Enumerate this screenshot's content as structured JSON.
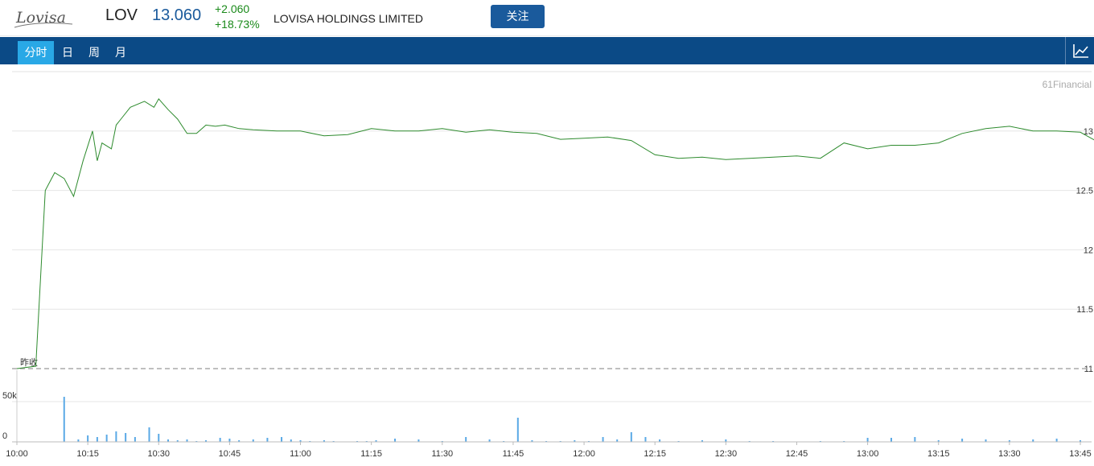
{
  "header": {
    "ticker": "LOV",
    "price": "13.060",
    "change": "+2.060",
    "change_pct": "+18.73%",
    "company": "LOVISA HOLDINGS LIMITED",
    "follow_label": "关注",
    "logo_text": "Lovisa"
  },
  "tabs": [
    {
      "label": "分时",
      "active": true
    },
    {
      "label": "日",
      "active": false
    },
    {
      "label": "周",
      "active": false
    },
    {
      "label": "月",
      "active": false
    }
  ],
  "chart_icon": "line-chart-icon",
  "colors": {
    "line": "#2e8b2e",
    "volume": "#5aa9e6",
    "tab_bar": "#0b4a86",
    "tab_active": "#29a8e6",
    "price": "#1a5a9c",
    "change": "#1a8a1a"
  },
  "chart_data": {
    "type": "line",
    "watermark": "61Financial",
    "prev_close_label": "昨收",
    "prev_close": 11,
    "ylim": [
      11,
      13.5
    ],
    "y_ticks": [
      {
        "value": 13,
        "label": "13"
      },
      {
        "value": 12.5,
        "label": "12.5"
      },
      {
        "value": 12,
        "label": "12"
      },
      {
        "value": 11.5,
        "label": "11.5"
      },
      {
        "value": 11,
        "label": "11"
      }
    ],
    "x_ticks": [
      "10:00",
      "10:15",
      "10:30",
      "10:45",
      "11:00",
      "11:15",
      "11:30",
      "11:45",
      "12:00",
      "12:15",
      "12:30",
      "12:45",
      "13:00",
      "13:15",
      "13:30",
      "13:45"
    ],
    "x_minutes": [
      0,
      4,
      6,
      8,
      10,
      12,
      14,
      16,
      17,
      18,
      20,
      21,
      22,
      24,
      27,
      29,
      30,
      32,
      34,
      36,
      38,
      40,
      42,
      44,
      45,
      47,
      50,
      55,
      60,
      65,
      70,
      75,
      80,
      85,
      90,
      95,
      100,
      105,
      110,
      115,
      120,
      125,
      130,
      135,
      140,
      145,
      150,
      155,
      160,
      165,
      170,
      175,
      180,
      185,
      190,
      195,
      200,
      205,
      210,
      215,
      220,
      225,
      230,
      235,
      240,
      245,
      250,
      255,
      260,
      265,
      270,
      275,
      280,
      285,
      290,
      295,
      300,
      305,
      310,
      315,
      320,
      325,
      330,
      335,
      340,
      345,
      350,
      355,
      360,
      365,
      370,
      375,
      380,
      385,
      390,
      395,
      400,
      405,
      410,
      415,
      420,
      425,
      430,
      435,
      440,
      445,
      450,
      455,
      460,
      465,
      470,
      475,
      480,
      485,
      490,
      495,
      500,
      505,
      510,
      515,
      520,
      525,
      528,
      530,
      533,
      535
    ],
    "prices": [
      11,
      11.02,
      12.5,
      12.65,
      12.6,
      12.45,
      12.75,
      13,
      12.75,
      12.9,
      12.85,
      13.05,
      13.1,
      13.2,
      13.25,
      13.2,
      13.27,
      13.18,
      13.1,
      12.98,
      12.98,
      13.05,
      13.04,
      13.05,
      13.04,
      13.02,
      13.01,
      13.0,
      13.0,
      12.96,
      12.97,
      13.02,
      13.0,
      13.0,
      13.02,
      12.99,
      13.01,
      12.99,
      12.98,
      12.93,
      12.94,
      12.95,
      12.92,
      12.8,
      12.77,
      12.78,
      12.76,
      12.77,
      12.78,
      12.79,
      12.77,
      12.9,
      12.85,
      12.88,
      12.88,
      12.9,
      12.98,
      13.02,
      13.04,
      13.0,
      13.0,
      12.99,
      12.88,
      12.94,
      12.96,
      13.0,
      13.0,
      13.0,
      12.98,
      13.0,
      13.13,
      13.13,
      13.12,
      13.12,
      13.08,
      13.06,
      13.07,
      13.09,
      13.1,
      13.11,
      13.1,
      13.13,
      13.15,
      13.16,
      13.17,
      13.18,
      13.19,
      13.2,
      13.2,
      13.17,
      13.16,
      13.16,
      13.16,
      13.15,
      13.12,
      13.1,
      13.1,
      13.08,
      13.06,
      13.08,
      13.02,
      13.05,
      13.06,
      13.04,
      13.02,
      13.03,
      13.0,
      13.0,
      13.02,
      13.04,
      13.03,
      13.02,
      13.01,
      13.0,
      12.98,
      12.99,
      13.0,
      13.01,
      13.02,
      13.03,
      12.98,
      13.06,
      13.04,
      13.05,
      13.06,
      13.06
    ],
    "volume_ticks": [
      {
        "value": 50000,
        "label": "50k"
      },
      {
        "value": 0,
        "label": "0"
      }
    ],
    "volume_max": 60000,
    "volume_minutes": [
      10,
      13,
      15,
      17,
      19,
      21,
      23,
      25,
      28,
      30,
      32,
      34,
      36,
      38,
      40,
      43,
      45,
      47,
      50,
      53,
      56,
      58,
      60,
      62,
      65,
      67,
      69,
      72,
      74,
      76,
      80,
      85,
      90,
      95,
      100,
      103,
      106,
      109,
      112,
      115,
      118,
      121,
      124,
      127,
      130,
      133,
      136,
      140,
      145,
      150,
      155,
      160,
      165,
      170,
      175,
      180,
      185,
      190,
      195,
      200,
      205,
      210,
      215,
      220,
      225,
      230,
      235,
      240,
      245,
      250,
      255,
      260,
      265,
      270,
      275,
      280,
      285,
      290,
      295,
      300,
      305,
      310,
      315,
      320,
      325,
      330,
      335,
      340,
      345,
      350,
      355,
      360,
      365,
      370,
      375,
      380,
      385,
      390,
      395,
      400,
      405,
      410,
      415,
      420,
      425,
      430,
      435,
      440,
      445,
      450,
      455,
      460,
      465,
      470,
      475,
      480,
      485,
      490,
      495,
      500,
      505,
      510,
      515,
      520,
      525,
      530
    ],
    "volumes": [
      56000,
      3000,
      8000,
      6000,
      9000,
      13000,
      11000,
      6000,
      18000,
      10000,
      3000,
      2000,
      3000,
      1000,
      2000,
      5000,
      4000,
      2000,
      3000,
      5000,
      6000,
      3000,
      2000,
      1000,
      2000,
      1000,
      0,
      1000,
      1000,
      2000,
      4000,
      3000,
      1000,
      6000,
      3000,
      1000,
      30000,
      2000,
      1000,
      1000,
      2000,
      1000,
      6000,
      3000,
      12000,
      6000,
      3000,
      1000,
      2000,
      3000,
      1000,
      1000,
      0,
      1000,
      1000,
      5000,
      5000,
      6000,
      2000,
      4000,
      3000,
      2000,
      3000,
      4000,
      2000,
      2000,
      1000,
      1000,
      3000,
      1000,
      2000,
      2000,
      4000,
      2000,
      1000,
      6000,
      2000,
      2000,
      1000,
      3000,
      1000,
      5000,
      2000,
      3000,
      6000,
      2000,
      2000,
      1000,
      2000,
      3000,
      1000,
      1000,
      1000,
      3000,
      17000,
      2000,
      5000,
      3000,
      8000,
      4000,
      2000,
      6000,
      3000,
      2000,
      1000,
      1000,
      4000,
      6000,
      3000,
      1000,
      1000,
      2000,
      1000,
      3000,
      2000,
      10000,
      6000,
      3000,
      5000,
      4000,
      2000,
      2000,
      4000,
      9000,
      15000,
      3000
    ]
  }
}
